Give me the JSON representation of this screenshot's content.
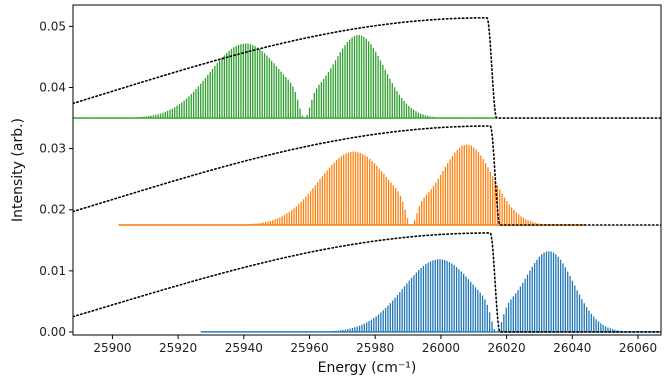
{
  "chart_data": {
    "type": "line",
    "title": "",
    "xlabel": "Energy (cm⁻¹)",
    "ylabel": "Intensity (arb.)",
    "xlim": [
      25888,
      26067
    ],
    "ylim": [
      -0.0005,
      0.0535
    ],
    "x_ticks": [
      25900,
      25920,
      25940,
      25960,
      25980,
      26000,
      26020,
      26040,
      26060
    ],
    "x_tick_labels": [
      "25900",
      "25920",
      "25940",
      "25960",
      "25980",
      "26000",
      "26020",
      "26040",
      "26060"
    ],
    "y_ticks": [
      0.0,
      0.01,
      0.02,
      0.03,
      0.04,
      0.05
    ],
    "y_tick_labels": [
      "0.00",
      "0.01",
      "0.02",
      "0.03",
      "0.04",
      "0.05"
    ],
    "grid": false,
    "legend": "none",
    "series": [
      {
        "color": "#1f77b4",
        "style": "stick-spectrum",
        "baseline": 0.0,
        "x_range": [
          25927,
          26067
        ],
        "line_spacing": 0.72,
        "gap_center": 26017,
        "peaks": [
          {
            "x": 25999.5,
            "height": 0.0119,
            "width": 15.5
          },
          {
            "x": 26033,
            "height": 0.0131,
            "width": 10.5
          }
        ]
      },
      {
        "color": "#ff7f0e",
        "style": "stick-spectrum",
        "baseline": 0.0175,
        "x_range": [
          25902,
          26044
        ],
        "line_spacing": 0.72,
        "gap_center": 25991,
        "peaks": [
          {
            "x": 25973.5,
            "height": 0.012,
            "width": 15
          },
          {
            "x": 26008,
            "height": 0.0131,
            "width": 11
          }
        ]
      },
      {
        "color": "#2ca02c",
        "style": "stick-spectrum",
        "baseline": 0.035,
        "x_range": [
          25888,
          26017
        ],
        "line_spacing": 0.72,
        "gap_center": 25958.5,
        "peaks": [
          {
            "x": 25940.5,
            "height": 0.0122,
            "width": 15.5
          },
          {
            "x": 25975,
            "height": 0.0135,
            "width": 11
          }
        ]
      }
    ],
    "envelopes": [
      {
        "color": "#000000",
        "style": "dotted",
        "baseline": 0.0,
        "start": 0.0025,
        "top": 0.0162,
        "rise_end": 26015,
        "drop": [
          26015,
          26018
        ]
      },
      {
        "color": "#000000",
        "style": "dotted",
        "baseline": 0.0175,
        "start": 0.0197,
        "top": 0.0337,
        "rise_end": 26015,
        "drop": [
          26015,
          26018
        ]
      },
      {
        "color": "#000000",
        "style": "dotted",
        "baseline": 0.035,
        "start": 0.0374,
        "top": 0.0514,
        "rise_end": 26014,
        "drop": [
          26014,
          26017
        ]
      }
    ]
  }
}
